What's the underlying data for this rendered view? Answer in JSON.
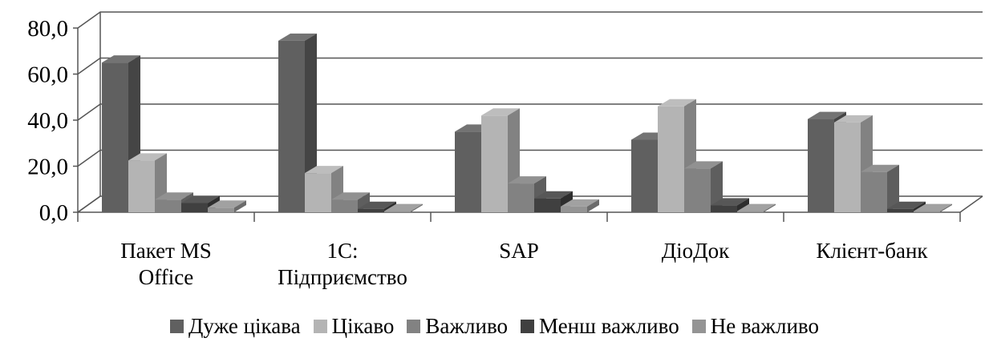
{
  "chart_data": {
    "type": "bar",
    "title": "",
    "xlabel": "",
    "ylabel": "",
    "ylim": [
      0,
      80
    ],
    "y_ticks": [
      "0,0",
      "20,0",
      "40,0",
      "60,0",
      "80,0"
    ],
    "grid": true,
    "legend_position": "bottom",
    "categories": [
      [
        "Пакет MS",
        "Office"
      ],
      [
        "1С:",
        "Підприємство"
      ],
      [
        "SAP"
      ],
      [
        "ДіоДок"
      ],
      [
        "Клієнт-банк"
      ]
    ],
    "series": [
      {
        "name": "Дуже цікава",
        "color": "#606060",
        "values": [
          65.0,
          74.5,
          35.0,
          31.5,
          40.5
        ]
      },
      {
        "name": "Цікаво",
        "color": "#b4b4b4",
        "values": [
          22.5,
          17.0,
          42.0,
          46.0,
          39.0
        ]
      },
      {
        "name": "Важливо",
        "color": "#828282",
        "values": [
          5.5,
          5.5,
          12.5,
          19.0,
          17.5
        ]
      },
      {
        "name": "Менш важливо",
        "color": "#404040",
        "values": [
          4.0,
          1.5,
          6.0,
          3.0,
          1.5
        ]
      },
      {
        "name": "Не важливо",
        "color": "#949494",
        "values": [
          2.0,
          0.5,
          2.5,
          0.5,
          0.5
        ]
      }
    ]
  }
}
